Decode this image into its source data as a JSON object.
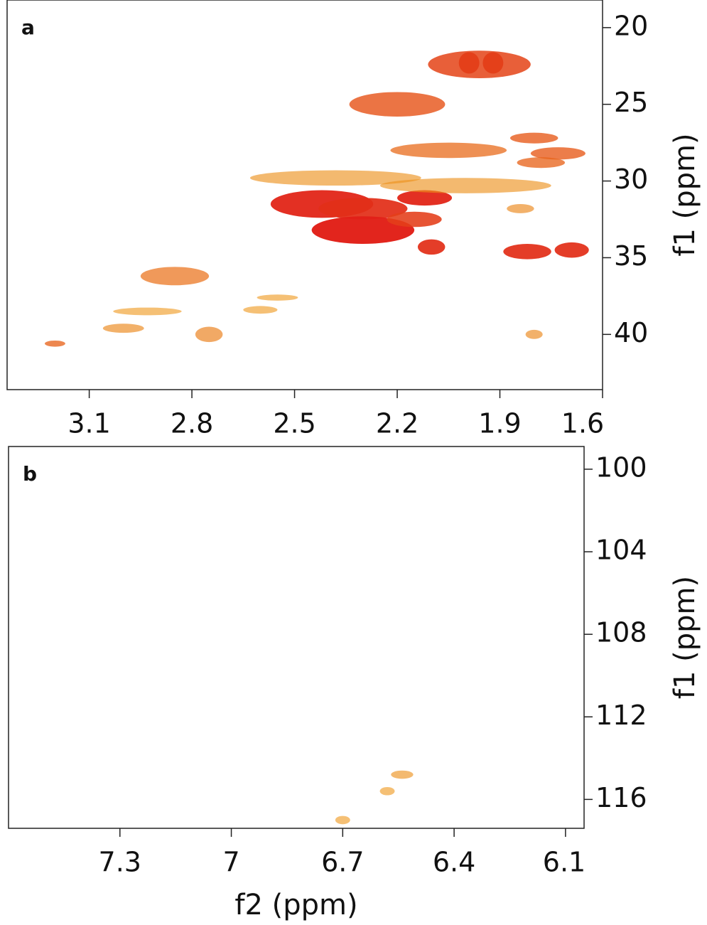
{
  "chart_data": [
    {
      "type": "contour",
      "panel_label": "a",
      "y_label": "f1 (ppm)",
      "xlim": [
        3.34,
        1.6
      ],
      "ylim": [
        18.2,
        43.6
      ],
      "xticks": [
        3.1,
        2.8,
        2.5,
        2.2,
        1.9,
        1.6
      ],
      "yticks": [
        20,
        25,
        30,
        35,
        40
      ],
      "low_color": "#f0b020",
      "high_color": "#e01818",
      "peaks": {
        "x": [
          1.99,
          1.92,
          1.96,
          2.2,
          2.05,
          1.8,
          1.73,
          1.78,
          2.42,
          2.3,
          2.12,
          2.3,
          2.15,
          2.1,
          1.82,
          1.69,
          2.38,
          2.0,
          2.85,
          2.75,
          3.0,
          3.2,
          1.84,
          1.8,
          2.55,
          2.93,
          2.6
        ],
        "y": [
          22.3,
          22.3,
          22.4,
          25.0,
          28.0,
          27.2,
          28.2,
          28.8,
          31.5,
          31.8,
          31.1,
          33.2,
          32.5,
          34.3,
          34.6,
          34.5,
          29.8,
          30.3,
          36.2,
          40.0,
          39.6,
          40.6,
          31.8,
          40.0,
          37.6,
          38.5,
          38.4
        ],
        "width": [
          0.06,
          0.06,
          0.3,
          0.28,
          0.34,
          0.14,
          0.16,
          0.14,
          0.3,
          0.26,
          0.16,
          0.3,
          0.16,
          0.08,
          0.14,
          0.1,
          0.5,
          0.5,
          0.2,
          0.08,
          0.12,
          0.06,
          0.08,
          0.05,
          0.12,
          0.2,
          0.1
        ],
        "height": [
          1.4,
          1.4,
          1.8,
          1.6,
          1.0,
          0.7,
          0.8,
          0.7,
          1.8,
          1.4,
          1.0,
          1.8,
          1.0,
          1.0,
          1.0,
          1.0,
          1.0,
          1.0,
          1.2,
          1.0,
          0.6,
          0.4,
          0.6,
          0.6,
          0.4,
          0.5,
          0.5
        ],
        "intensity": [
          1.0,
          1.0,
          0.7,
          0.6,
          0.45,
          0.55,
          0.55,
          0.5,
          0.9,
          0.85,
          0.9,
          0.95,
          0.75,
          0.85,
          0.85,
          0.85,
          0.2,
          0.2,
          0.4,
          0.3,
          0.25,
          0.5,
          0.25,
          0.25,
          0.15,
          0.15,
          0.15
        ]
      }
    },
    {
      "type": "contour",
      "panel_label": "b",
      "y_label": "f1 (ppm)",
      "x_label": "f2 (ppm)",
      "xlim": [
        7.6,
        6.05
      ],
      "ylim": [
        98.9,
        117.4
      ],
      "xticks": [
        7.3,
        7.0,
        6.7,
        6.4,
        6.1
      ],
      "yticks": [
        100,
        104,
        108,
        112,
        116
      ],
      "low_color": "#f0b020",
      "high_color": "#e01818",
      "peaks": {
        "x": [
          6.54,
          6.58,
          6.7
        ],
        "y": [
          114.8,
          115.6,
          117.0
        ],
        "width": [
          0.06,
          0.04,
          0.04
        ],
        "height": [
          0.4,
          0.4,
          0.4
        ],
        "intensity": [
          0.2,
          0.15,
          0.15
        ]
      }
    }
  ]
}
